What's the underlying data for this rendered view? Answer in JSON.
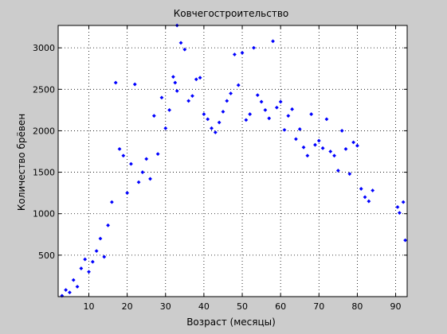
{
  "chart_data": {
    "type": "scatter",
    "title": "Ковчегостроительство",
    "xlabel": "Возраст (месяцы)",
    "ylabel": "Количество брёвен",
    "xlim": [
      2,
      93
    ],
    "ylim": [
      0,
      3270
    ],
    "xticks": [
      "10",
      "20",
      "30",
      "40",
      "50",
      "60",
      "70",
      "80",
      "90"
    ],
    "yticks": [
      "500",
      "1000",
      "1500",
      "2000",
      "2500",
      "3000"
    ],
    "grid": true,
    "marker": "diamond",
    "colors": {
      "marker": "#0000ff",
      "background": "#cccccc",
      "axes": "#ffffff",
      "grid": "#000000"
    },
    "series": [
      {
        "points": [
          [
            3,
            10
          ],
          [
            4,
            80
          ],
          [
            5,
            50
          ],
          [
            6,
            200
          ],
          [
            7,
            120
          ],
          [
            8,
            340
          ],
          [
            9,
            450
          ],
          [
            10,
            300
          ],
          [
            11,
            420
          ],
          [
            12,
            550
          ],
          [
            13,
            700
          ],
          [
            14,
            480
          ],
          [
            15,
            860
          ],
          [
            16,
            1140
          ],
          [
            17,
            2580
          ],
          [
            18,
            1780
          ],
          [
            19,
            1700
          ],
          [
            20,
            1250
          ],
          [
            21,
            1600
          ],
          [
            22,
            2560
          ],
          [
            23,
            1380
          ],
          [
            24,
            1500
          ],
          [
            25,
            1660
          ],
          [
            26,
            1420
          ],
          [
            27,
            2180
          ],
          [
            28,
            1720
          ],
          [
            29,
            2400
          ],
          [
            30,
            2030
          ],
          [
            31,
            2250
          ],
          [
            32,
            2650
          ],
          [
            32.5,
            2580
          ],
          [
            33,
            3270
          ],
          [
            33,
            2480
          ],
          [
            34,
            3060
          ],
          [
            35,
            2980
          ],
          [
            36,
            2360
          ],
          [
            37,
            2420
          ],
          [
            38,
            2620
          ],
          [
            39,
            2640
          ],
          [
            40,
            2200
          ],
          [
            41,
            2140
          ],
          [
            42,
            2030
          ],
          [
            43,
            1980
          ],
          [
            44,
            2100
          ],
          [
            45,
            2230
          ],
          [
            46,
            2360
          ],
          [
            47,
            2450
          ],
          [
            48,
            2920
          ],
          [
            49,
            2550
          ],
          [
            50,
            2940
          ],
          [
            51,
            2130
          ],
          [
            52,
            2200
          ],
          [
            53,
            3000
          ],
          [
            54,
            2430
          ],
          [
            55,
            2350
          ],
          [
            56,
            2250
          ],
          [
            57,
            2150
          ],
          [
            58,
            3080
          ],
          [
            59,
            2280
          ],
          [
            60,
            2350
          ],
          [
            61,
            2010
          ],
          [
            62,
            2180
          ],
          [
            63,
            2260
          ],
          [
            64,
            1900
          ],
          [
            65,
            2020
          ],
          [
            66,
            1800
          ],
          [
            67,
            1700
          ],
          [
            68,
            2200
          ],
          [
            69,
            1830
          ],
          [
            70,
            1880
          ],
          [
            71,
            1790
          ],
          [
            72,
            2140
          ],
          [
            73,
            1750
          ],
          [
            74,
            1700
          ],
          [
            75,
            1520
          ],
          [
            76,
            2000
          ],
          [
            77,
            1780
          ],
          [
            78,
            1480
          ],
          [
            79,
            1860
          ],
          [
            80,
            1820
          ],
          [
            81,
            1300
          ],
          [
            82,
            1200
          ],
          [
            83,
            1150
          ],
          [
            84,
            1280
          ],
          [
            90.5,
            1080
          ],
          [
            91,
            1010
          ],
          [
            92,
            1140
          ],
          [
            92.5,
            680
          ]
        ]
      }
    ]
  }
}
